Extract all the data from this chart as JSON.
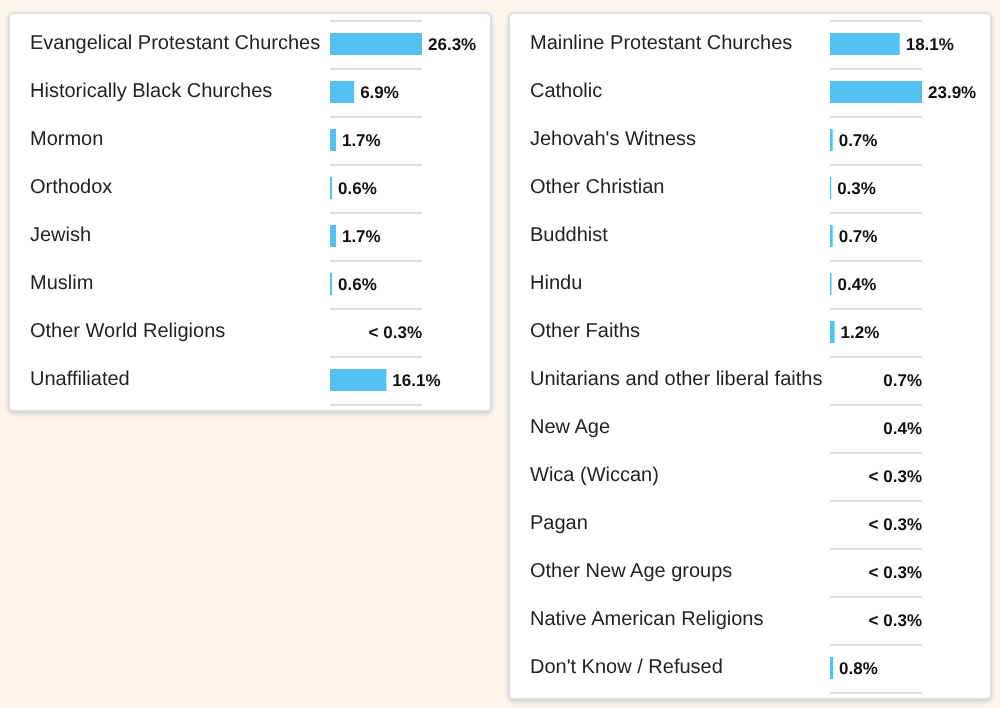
{
  "chart_data": [
    {
      "type": "bar",
      "orientation": "horizontal",
      "color": "#56c1f0",
      "categories": [
        "Evangelical Protestant Churches",
        "Historically Black Churches",
        "Mormon",
        "Orthodox",
        "Jewish",
        "Muslim",
        "Other World Religions",
        "Unaffiliated"
      ],
      "values": [
        26.3,
        6.9,
        1.7,
        0.6,
        1.7,
        0.6,
        null,
        16.1
      ],
      "value_labels": [
        "26.3%",
        "6.9%",
        "1.7%",
        "0.6%",
        "1.7%",
        "0.6%",
        "< 0.3%",
        "16.1%"
      ]
    },
    {
      "type": "bar",
      "orientation": "horizontal",
      "color": "#56c1f0",
      "categories": [
        "Mainline Protestant Churches",
        "Catholic",
        "Jehovah's Witness",
        "Other Christian",
        "Buddhist",
        "Hindu",
        "Other Faiths",
        "Unitarians and other liberal faiths",
        "New Age",
        "Wica (Wiccan)",
        "Pagan",
        "Other New Age groups",
        "Native American Religions",
        "Don't Know / Refused"
      ],
      "values": [
        18.1,
        23.9,
        0.7,
        0.3,
        0.7,
        0.4,
        1.2,
        null,
        null,
        null,
        null,
        null,
        null,
        0.8
      ],
      "value_labels": [
        "18.1%",
        "23.9%",
        "0.7%",
        "0.3%",
        "0.7%",
        "0.4%",
        "1.2%",
        "0.7%",
        "0.4%",
        "< 0.3%",
        "< 0.3%",
        "< 0.3%",
        "< 0.3%",
        "0.8%"
      ]
    }
  ]
}
